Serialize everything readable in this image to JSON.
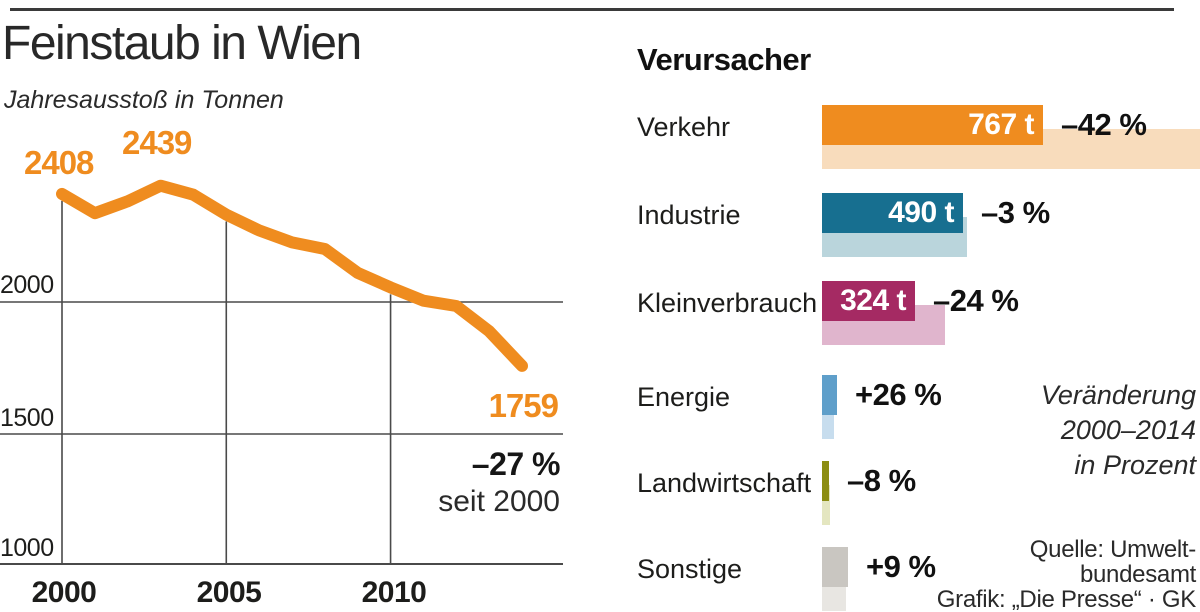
{
  "chart_data": [
    {
      "type": "line",
      "title": "Feinstaub in Wien",
      "subtitle": "Jahresausstoß in Tonnen",
      "x": [
        2000,
        2001,
        2002,
        2003,
        2004,
        2005,
        2006,
        2007,
        2008,
        2009,
        2010,
        2011,
        2012,
        2013,
        2014
      ],
      "values": [
        2408,
        2335,
        2380,
        2439,
        2405,
        2330,
        2270,
        2225,
        2200,
        2110,
        2055,
        2005,
        1985,
        1890,
        1759
      ],
      "point_labels": {
        "start": "2408",
        "peak": "2439",
        "end": "1759"
      },
      "change_label": "–27 %",
      "change_sublabel": "seit 2000",
      "yticks": [
        2000,
        1500,
        1000
      ],
      "ytick_labels": [
        "2000",
        "1500",
        "1000"
      ],
      "xticks": [
        2000,
        2005,
        2010
      ],
      "xtick_labels": [
        "2000",
        "2005",
        "2010"
      ],
      "ylim": [
        1000,
        2500
      ],
      "grid": true,
      "line_color": "#ef8c1f"
    },
    {
      "type": "bar",
      "orientation": "horizontal",
      "title": "Verursacher",
      "categories": [
        "Verkehr",
        "Industrie",
        "Kleinverbrauch",
        "Energie",
        "Landwirtschaft",
        "Sonstige"
      ],
      "series": [
        {
          "name": "2014",
          "values": [
            767,
            490,
            324,
            52,
            25,
            90
          ]
        },
        {
          "name": "2000",
          "values": [
            1322,
            505,
            426,
            41,
            27,
            83
          ]
        }
      ],
      "value_labels": [
        "767 t",
        "490 t",
        "324 t",
        "",
        "",
        ""
      ],
      "change_labels": [
        "–42 %",
        "–3 %",
        "–24 %",
        "+26 %",
        "–8 %",
        "+9 %"
      ],
      "colors": [
        {
          "dark": "#ef8c1f",
          "light": "#f8dcbc"
        },
        {
          "dark": "#176f90",
          "light": "#bad5dc"
        },
        {
          "dark": "#a52a63",
          "light": "#e0b5cd"
        },
        {
          "dark": "#5f9fca",
          "light": "#c7ddee"
        },
        {
          "dark": "#8c8d12",
          "light": "#e4e6c0"
        },
        {
          "dark": "#c9c6c1",
          "light": "#e8e6e2"
        }
      ],
      "legend_note": [
        "Veränderung",
        "2000–2014",
        "in Prozent"
      ],
      "source": [
        "Quelle: Umwelt-",
        "bundesamt",
        "Grafik: „Die Presse“ · GK"
      ]
    }
  ]
}
